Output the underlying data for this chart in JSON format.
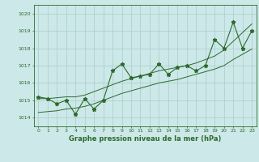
{
  "xlabel": "Graphe pression niveau de la mer (hPa)",
  "ylim": [
    1013.5,
    1020.5
  ],
  "xlim": [
    -0.5,
    23.5
  ],
  "yticks": [
    1014,
    1015,
    1016,
    1017,
    1018,
    1019,
    1020
  ],
  "xticks": [
    0,
    1,
    2,
    3,
    4,
    5,
    6,
    7,
    8,
    9,
    10,
    11,
    12,
    13,
    14,
    15,
    16,
    17,
    18,
    19,
    20,
    21,
    22,
    23
  ],
  "pressure": [
    1015.2,
    1015.1,
    1014.8,
    1015.0,
    1014.2,
    1015.1,
    1014.5,
    1015.0,
    1016.7,
    1017.1,
    1016.3,
    1016.4,
    1016.5,
    1017.1,
    1016.5,
    1016.9,
    1017.0,
    1016.7,
    1017.0,
    1018.5,
    1018.0,
    1019.5,
    1018.0,
    1019.0
  ],
  "trend_upper": [
    1015.1,
    1015.1,
    1015.15,
    1015.2,
    1015.2,
    1015.3,
    1015.5,
    1015.7,
    1015.9,
    1016.1,
    1016.25,
    1016.4,
    1016.55,
    1016.7,
    1016.8,
    1016.9,
    1017.0,
    1017.15,
    1017.35,
    1017.55,
    1017.9,
    1018.4,
    1018.9,
    1019.4
  ],
  "trend_lower": [
    1014.3,
    1014.35,
    1014.4,
    1014.5,
    1014.55,
    1014.65,
    1014.8,
    1015.0,
    1015.2,
    1015.4,
    1015.55,
    1015.7,
    1015.85,
    1016.0,
    1016.1,
    1016.2,
    1016.35,
    1016.5,
    1016.65,
    1016.8,
    1017.0,
    1017.35,
    1017.65,
    1017.95
  ],
  "line_color": "#2d6a2d",
  "bg_color": "#cce8e8",
  "grid_color": "#aacccc",
  "marker": "*"
}
